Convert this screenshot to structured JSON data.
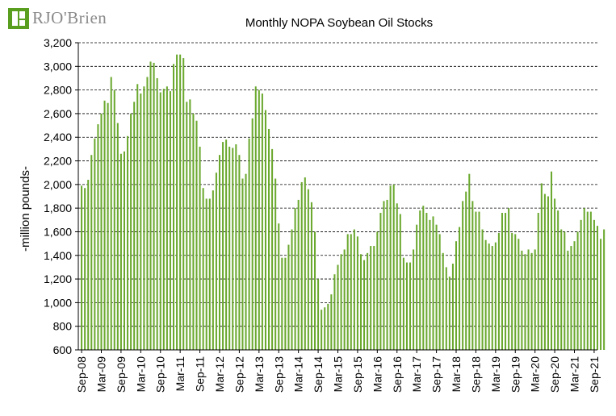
{
  "brand": {
    "logo_text": "RJO'Brien",
    "primary_color": "#5a9e1f"
  },
  "chart_data": {
    "type": "bar",
    "title": "Monthly NOPA Soybean Oil Stocks",
    "xlabel": "",
    "ylabel": "-million pounds-",
    "ylim": [
      600,
      3200
    ],
    "yticks": [
      600,
      800,
      1000,
      1200,
      1400,
      1600,
      1800,
      2000,
      2200,
      2400,
      2600,
      2800,
      3000,
      3200
    ],
    "grid": "horizontal-dashed",
    "bar_color": "#6aa82e",
    "start_month": "Sep-08",
    "xtick_labels": [
      "Sep-08",
      "Mar-09",
      "Sep-09",
      "Mar-10",
      "Sep-10",
      "Mar-11",
      "Sep-11",
      "Mar-12",
      "Sep-12",
      "Mar-13",
      "Sep-13",
      "Mar-14",
      "Sep-14",
      "Mar-15",
      "Sep-15",
      "Mar-16",
      "Sep-16",
      "Mar-17",
      "Sep-17",
      "Mar-18",
      "Sep-18",
      "Mar-19",
      "Sep-19",
      "Mar-20",
      "Sep-20",
      "Mar-21",
      "Sep-21"
    ],
    "values": [
      1990,
      1970,
      2040,
      2250,
      2390,
      2510,
      2600,
      2710,
      2690,
      2910,
      2800,
      2520,
      2260,
      2280,
      2410,
      2600,
      2700,
      2850,
      2770,
      2830,
      2910,
      3040,
      3030,
      2900,
      2780,
      2810,
      2830,
      2790,
      3020,
      3100,
      3100,
      3070,
      2700,
      2720,
      2600,
      2540,
      2320,
      1970,
      1880,
      1880,
      1950,
      2100,
      2250,
      2360,
      2380,
      2320,
      2310,
      2340,
      2250,
      2050,
      2090,
      2390,
      2560,
      2830,
      2800,
      2770,
      2630,
      2470,
      2300,
      2050,
      1670,
      1380,
      1380,
      1490,
      1620,
      1800,
      1870,
      2020,
      2060,
      1960,
      1850,
      1600,
      1200,
      940,
      960,
      990,
      1070,
      1240,
      1320,
      1410,
      1450,
      1580,
      1580,
      1620,
      1560,
      1410,
      1360,
      1420,
      1480,
      1480,
      1600,
      1760,
      1860,
      1870,
      1990,
      2000,
      1840,
      1750,
      1380,
      1340,
      1340,
      1450,
      1660,
      1780,
      1820,
      1760,
      1700,
      1730,
      1660,
      1580,
      1420,
      1300,
      1220,
      1330,
      1520,
      1640,
      1860,
      1940,
      2090,
      1860,
      1770,
      1770,
      1620,
      1530,
      1500,
      1480,
      1510,
      1590,
      1760,
      1760,
      1800,
      1590,
      1580,
      1540,
      1440,
      1410,
      1450,
      1420,
      1450,
      1760,
      2010,
      1920,
      1900,
      2110,
      1880,
      1780,
      1620,
      1600,
      1440,
      1480,
      1520,
      1600,
      1700,
      1800,
      1770,
      1770,
      1700,
      1650,
      1540,
      1620
    ]
  }
}
